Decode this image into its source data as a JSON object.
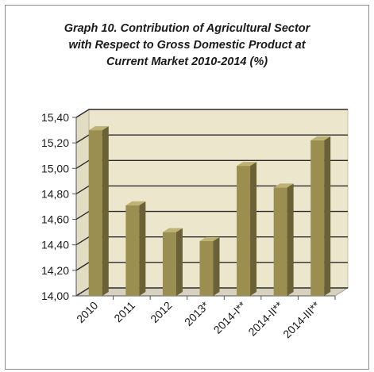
{
  "chart_data": {
    "type": "bar",
    "title_lines": [
      "Graph 10. Contribution of Agricultural Sector",
      "with Respect to Gross Domestic Product at",
      "Current Market 2010-2014 (%)"
    ],
    "categories": [
      "2010",
      "2011",
      "2012",
      "2013*",
      "2014-I**",
      "2014-II**",
      "2014-III**"
    ],
    "values": [
      15.3,
      14.71,
      14.5,
      14.43,
      15.02,
      14.85,
      15.22
    ],
    "ylim": [
      14.0,
      15.4
    ],
    "yticks": [
      14.0,
      14.2,
      14.4,
      14.6,
      14.8,
      15.0,
      15.2,
      15.4
    ],
    "ytick_labels": [
      "14,00",
      "14,20",
      "14,40",
      "14,60",
      "14,80",
      "15,00",
      "15,20",
      "15,40"
    ],
    "grid": true,
    "style": "3d-column",
    "colors": {
      "bar_front": "#9a8e50",
      "bar_side": "#6a6136",
      "bar_top": "#bdb173",
      "wall": "#ece7cc",
      "floor": "#d7d2bf",
      "grid": "#2a2a2a"
    }
  }
}
